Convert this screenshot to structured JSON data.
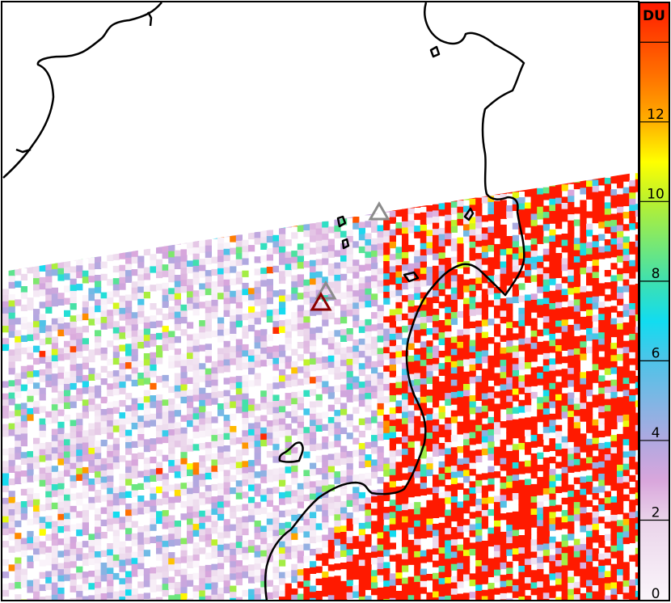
{
  "colorbar": {
    "unit": "DU",
    "range": [
      0,
      15
    ],
    "ticks": [
      0,
      2,
      4,
      6,
      8,
      10,
      12,
      14
    ],
    "tick_labels": [
      "0",
      "2",
      "4",
      "6",
      "8",
      "10",
      "12",
      ""
    ],
    "colors": [
      {
        "value": 0,
        "color": "#fbf6fb"
      },
      {
        "value": 2,
        "color": "#ead4ea"
      },
      {
        "value": 3,
        "color": "#d9a6dc"
      },
      {
        "value": 4,
        "color": "#b0a8e0"
      },
      {
        "value": 6,
        "color": "#4fc3e8"
      },
      {
        "value": 7,
        "color": "#12dcf0"
      },
      {
        "value": 8,
        "color": "#3ee0b0"
      },
      {
        "value": 10,
        "color": "#b8f030"
      },
      {
        "value": 11,
        "color": "#ffff00"
      },
      {
        "value": 12,
        "color": "#ffb000"
      },
      {
        "value": 13,
        "color": "#ff7a00"
      },
      {
        "value": 15,
        "color": "#ff1a00"
      }
    ]
  },
  "markers": [
    {
      "type": "triangle",
      "color": "#8c8c8c"
    },
    {
      "type": "triangle",
      "color": "#8c8c8c"
    },
    {
      "type": "triangle",
      "color": "#8b0000"
    }
  ],
  "colors": {
    "coastline": "#000000",
    "high_value": "#ff0000"
  }
}
